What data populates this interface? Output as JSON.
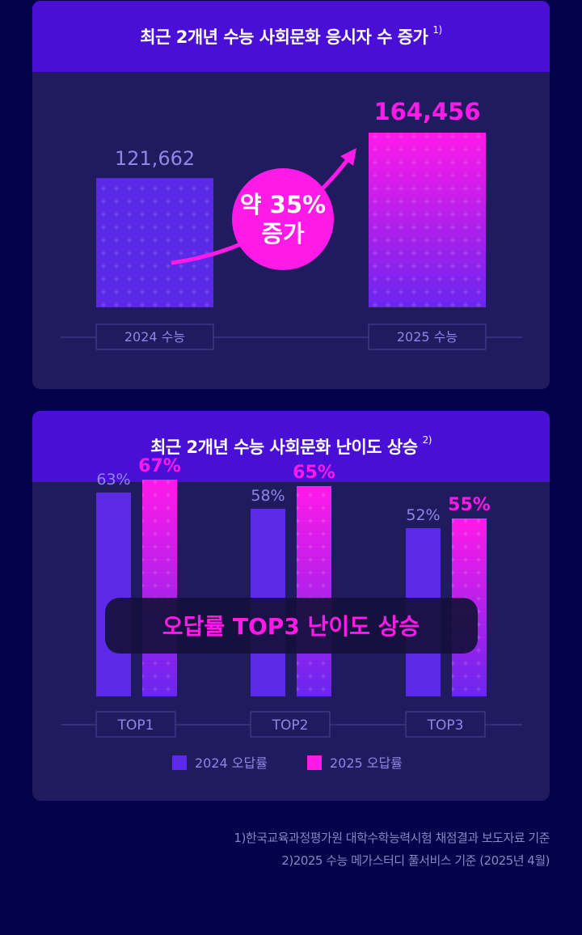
{
  "chart_data": [
    {
      "type": "bar",
      "title": "최근 2개년 수능 사회문화 응시자 수 증가",
      "title_note": "1)",
      "categories": [
        "2024 수능",
        "2025 수능"
      ],
      "values": [
        121662,
        164456
      ],
      "value_labels": [
        "121,662",
        "164,456"
      ],
      "annotation": {
        "line1": "약 35%",
        "line2": "증가"
      },
      "ylim": [
        0,
        164456
      ]
    },
    {
      "type": "bar",
      "title": "최근 2개년 수능 사회문화 난이도 상승",
      "title_note": "2)",
      "categories": [
        "TOP1",
        "TOP2",
        "TOP3"
      ],
      "series": [
        {
          "name": "2024 오답률",
          "values": [
            63,
            58,
            52
          ],
          "labels": [
            "63%",
            "58%",
            "52%"
          ]
        },
        {
          "name": "2025 오답률",
          "values": [
            67,
            65,
            55
          ],
          "labels": [
            "67%",
            "65%",
            "55%"
          ]
        }
      ],
      "overlay": "오답률 TOP3 난이도 상승",
      "ylim": [
        0,
        80
      ],
      "legend_position": "bottom"
    }
  ],
  "colors": {
    "background": "#03024a",
    "panel": "#201a5e",
    "header": "#4a0fd6",
    "bar_2024": "#5b2ae6",
    "bar_2025_top": "#ff1ae8",
    "bar_2025_bottom": "#6a26ee",
    "accent": "#ff1ae8",
    "muted_text": "#8f86e6"
  },
  "footnotes": [
    "1)한국교육과정평가원 대학수학능력시험 채점결과 보도자료 기준",
    "2)2025 수능 메가스터디 풀서비스 기준 (2025년 4월)"
  ]
}
